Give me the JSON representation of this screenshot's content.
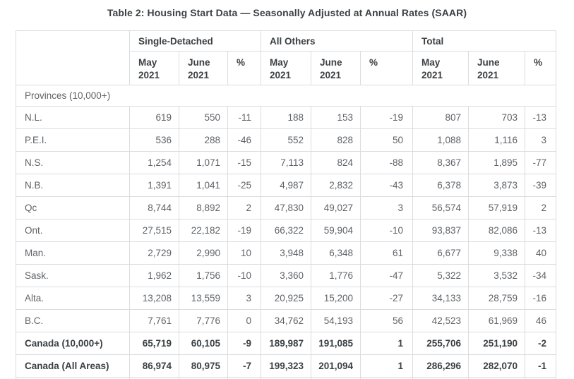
{
  "title": "Table 2: Housing Start Data — Seasonally Adjusted at Annual Rates (SAAR)",
  "table": {
    "header": {
      "groups": [
        "Single-Detached",
        "All Others",
        "Total"
      ],
      "months": [
        "May",
        "June"
      ],
      "year": "2021",
      "percent_symbol": "%"
    },
    "section_label": "Provinces (10,000+)",
    "rows": [
      {
        "label": "N.L.",
        "bold": false,
        "sd_may": "619",
        "sd_june": "550",
        "sd_pct": "-11",
        "ao_may": "188",
        "ao_june": "153",
        "ao_pct": "-19",
        "t_may": "807",
        "t_june": "703",
        "t_pct": "-13"
      },
      {
        "label": "P.E.I.",
        "bold": false,
        "sd_may": "536",
        "sd_june": "288",
        "sd_pct": "-46",
        "ao_may": "552",
        "ao_june": "828",
        "ao_pct": "50",
        "t_may": "1,088",
        "t_june": "1,116",
        "t_pct": "3"
      },
      {
        "label": "N.S.",
        "bold": false,
        "sd_may": "1,254",
        "sd_june": "1,071",
        "sd_pct": "-15",
        "ao_may": "7,113",
        "ao_june": "824",
        "ao_pct": "-88",
        "t_may": "8,367",
        "t_june": "1,895",
        "t_pct": "-77"
      },
      {
        "label": "N.B.",
        "bold": false,
        "sd_may": "1,391",
        "sd_june": "1,041",
        "sd_pct": "-25",
        "ao_may": "4,987",
        "ao_june": "2,832",
        "ao_pct": "-43",
        "t_may": "6,378",
        "t_june": "3,873",
        "t_pct": "-39"
      },
      {
        "label": "Qc",
        "bold": false,
        "sd_may": "8,744",
        "sd_june": "8,892",
        "sd_pct": "2",
        "ao_may": "47,830",
        "ao_june": "49,027",
        "ao_pct": "3",
        "t_may": "56,574",
        "t_june": "57,919",
        "t_pct": "2"
      },
      {
        "label": "Ont.",
        "bold": false,
        "sd_may": "27,515",
        "sd_june": "22,182",
        "sd_pct": "-19",
        "ao_may": "66,322",
        "ao_june": "59,904",
        "ao_pct": "-10",
        "t_may": "93,837",
        "t_june": "82,086",
        "t_pct": "-13"
      },
      {
        "label": "Man.",
        "bold": false,
        "sd_may": "2,729",
        "sd_june": "2,990",
        "sd_pct": "10",
        "ao_may": "3,948",
        "ao_june": "6,348",
        "ao_pct": "61",
        "t_may": "6,677",
        "t_june": "9,338",
        "t_pct": "40"
      },
      {
        "label": "Sask.",
        "bold": false,
        "sd_may": "1,962",
        "sd_june": "1,756",
        "sd_pct": "-10",
        "ao_may": "3,360",
        "ao_june": "1,776",
        "ao_pct": "-47",
        "t_may": "5,322",
        "t_june": "3,532",
        "t_pct": "-34"
      },
      {
        "label": "Alta.",
        "bold": false,
        "sd_may": "13,208",
        "sd_june": "13,559",
        "sd_pct": "3",
        "ao_may": "20,925",
        "ao_june": "15,200",
        "ao_pct": "-27",
        "t_may": "34,133",
        "t_june": "28,759",
        "t_pct": "-16"
      },
      {
        "label": "B.C.",
        "bold": false,
        "sd_may": "7,761",
        "sd_june": "7,776",
        "sd_pct": "0",
        "ao_may": "34,762",
        "ao_june": "54,193",
        "ao_pct": "56",
        "t_may": "42,523",
        "t_june": "61,969",
        "t_pct": "46"
      },
      {
        "label": "Canada (10,000+)",
        "bold": true,
        "sd_may": "65,719",
        "sd_june": "60,105",
        "sd_pct": "-9",
        "ao_may": "189,987",
        "ao_june": "191,085",
        "ao_pct": "1",
        "t_may": "255,706",
        "t_june": "251,190",
        "t_pct": "-2"
      },
      {
        "label": "Canada (All Areas)",
        "bold": true,
        "sd_may": "86,974",
        "sd_june": "80,975",
        "sd_pct": "-7",
        "ao_may": "199,323",
        "ao_june": "201,094",
        "ao_pct": "1",
        "t_may": "286,296",
        "t_june": "282,070",
        "t_pct": "-1"
      }
    ],
    "colors": {
      "header_text": "#3c4043",
      "body_text": "#5f6368",
      "border": "#dadce0",
      "background": "#ffffff"
    }
  }
}
